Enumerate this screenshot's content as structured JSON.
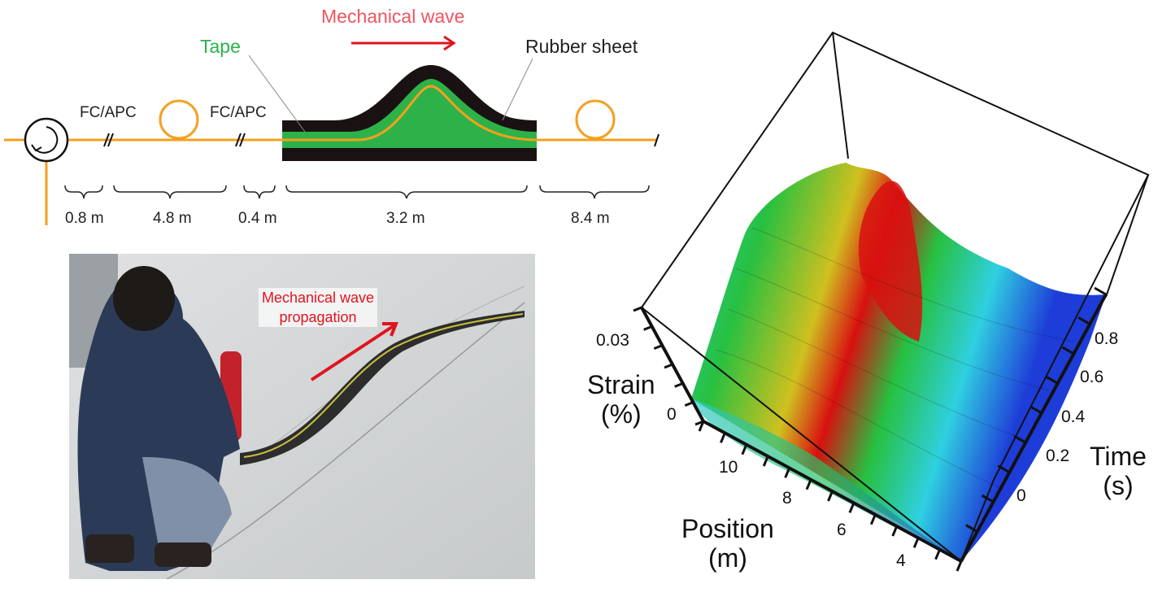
{
  "schematic": {
    "wave_label": "Mechanical wave",
    "tape_label": "Tape",
    "rubber_label": "Rubber sheet",
    "connectors": [
      "FC/APC",
      "FC/APC"
    ],
    "segments": [
      "0.8 m",
      "4.8 m",
      "0.4 m",
      "3.2 m",
      "8.4 m"
    ],
    "colors": {
      "fiber": "#f5a01e",
      "tape": "#2db24a",
      "rubber": "#1a1212",
      "wave": "#e0141e"
    }
  },
  "photo": {
    "caption_line1": "Mechanical wave",
    "caption_line2": "propagation"
  },
  "plot3d": {
    "type": "surface",
    "z_label_line1": "Strain",
    "z_label_line2": "(%)",
    "z_ticks": [
      "0.03",
      "0"
    ],
    "x_label_line1": "Position",
    "x_label_line2": "(m)",
    "x_ticks": [
      "10",
      "8",
      "6",
      "4"
    ],
    "y_label_line1": "Time",
    "y_label_line2": "(s)",
    "y_ticks": [
      "0.8",
      "0.6",
      "0.4",
      "0.2",
      "0"
    ],
    "colormap": [
      "#1e3cd8",
      "#2fd0e0",
      "#27c040",
      "#e0d020",
      "#d81010"
    ]
  }
}
